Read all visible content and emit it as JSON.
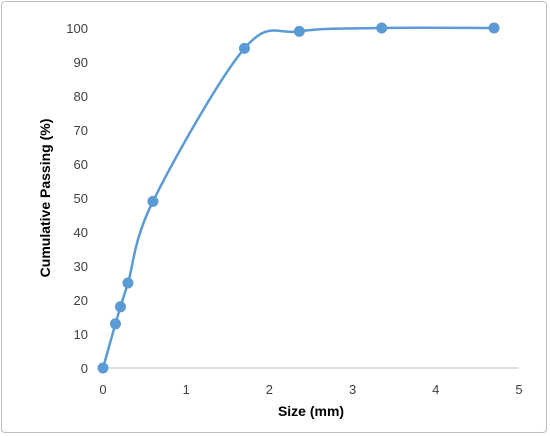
{
  "chart_data": {
    "type": "scatter",
    "title": "",
    "xlabel": "Size (mm)",
    "ylabel": "Cumulative  Passing (%)",
    "xlim": [
      0,
      5
    ],
    "ylim": [
      0,
      100
    ],
    "x_ticks": [
      "0",
      "1",
      "2",
      "3",
      "4",
      "5"
    ],
    "y_ticks": [
      "0",
      "10",
      "20",
      "30",
      "40",
      "50",
      "60",
      "70",
      "80",
      "90",
      "100"
    ],
    "grid": false,
    "legend": "none",
    "smooth_line": true,
    "series": [
      {
        "x": [
          0,
          0.15,
          0.21,
          0.3,
          0.6,
          1.7,
          2.36,
          3.35,
          4.7
        ],
        "y": [
          0,
          13,
          18,
          25,
          49,
          94,
          99,
          100,
          100
        ],
        "color": "#5b9bd5"
      }
    ]
  }
}
